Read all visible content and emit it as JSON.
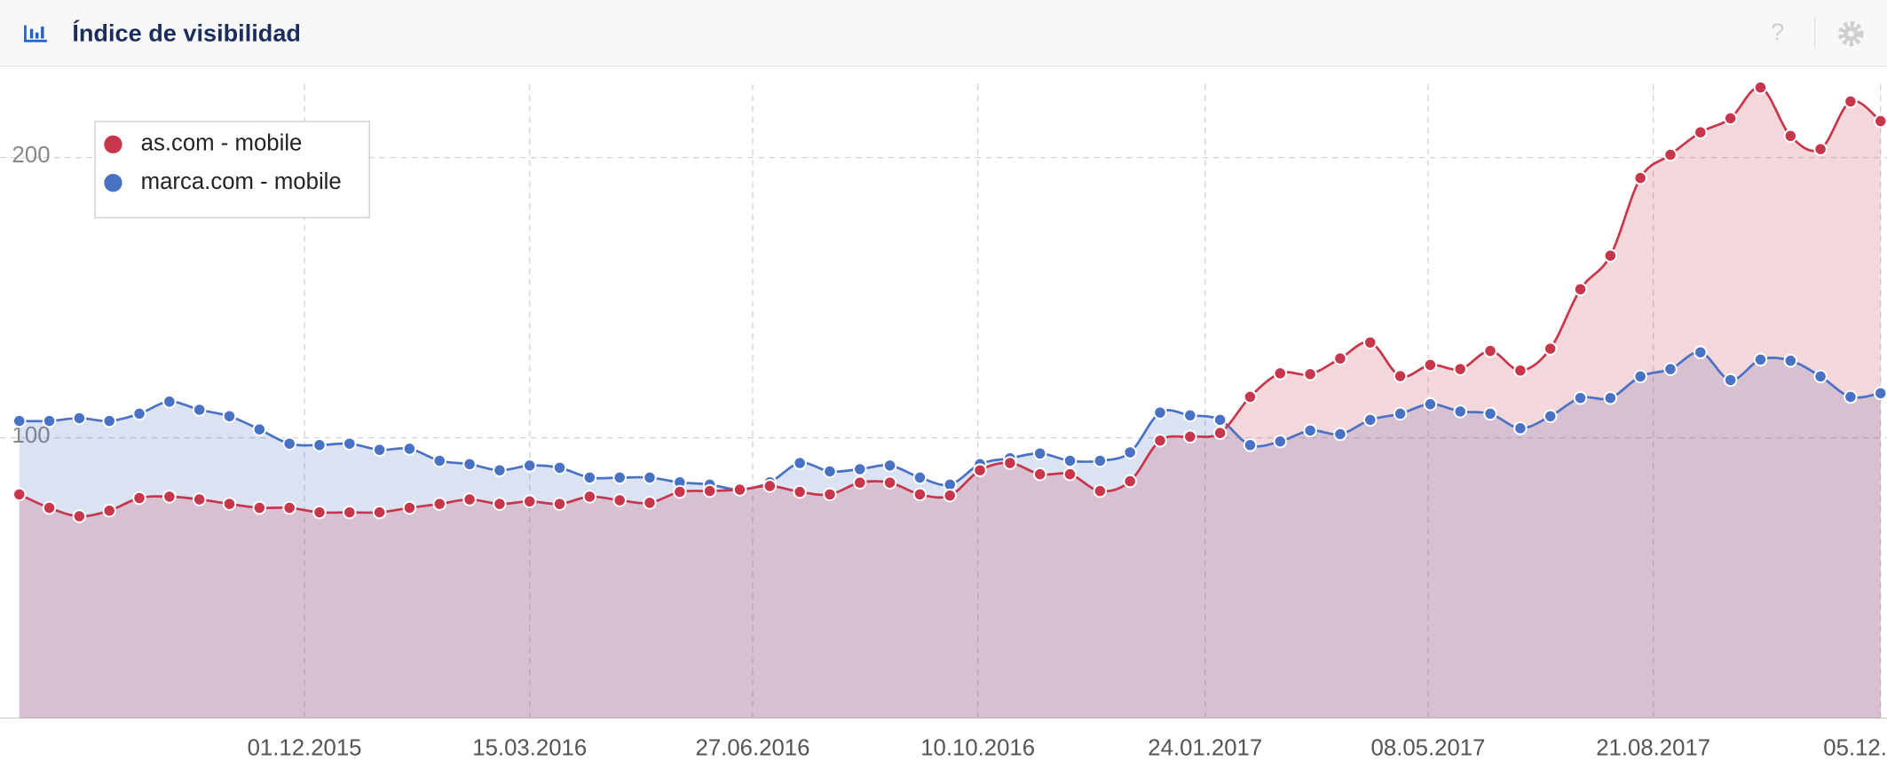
{
  "header": {
    "title": "Índice de visibilidad",
    "help": "?"
  },
  "chart_data": {
    "type": "area",
    "x": [
      "21.07.2015",
      "04.08.2015",
      "18.08.2015",
      "01.09.2015",
      "15.09.2015",
      "29.09.2015",
      "13.10.2015",
      "27.10.2015",
      "10.11.2015",
      "24.11.2015",
      "08.12.2015",
      "22.12.2015",
      "05.01.2016",
      "19.01.2016",
      "02.02.2016",
      "16.02.2016",
      "01.03.2016",
      "15.03.2016",
      "29.03.2016",
      "12.04.2016",
      "26.04.2016",
      "10.05.2016",
      "24.05.2016",
      "07.06.2016",
      "21.06.2016",
      "05.07.2016",
      "19.07.2016",
      "02.08.2016",
      "16.08.2016",
      "30.08.2016",
      "13.09.2016",
      "27.09.2016",
      "11.10.2016",
      "25.10.2016",
      "08.11.2016",
      "22.11.2016",
      "06.12.2016",
      "20.12.2016",
      "03.01.2017",
      "17.01.2017",
      "31.01.2017",
      "14.02.2017",
      "28.02.2017",
      "14.03.2017",
      "28.03.2017",
      "11.04.2017",
      "25.04.2017",
      "09.05.2017",
      "23.05.2017",
      "06.06.2017",
      "20.06.2017",
      "04.07.2017",
      "18.07.2017",
      "01.08.2017",
      "15.08.2017",
      "29.08.2017",
      "12.09.2017",
      "26.09.2017",
      "10.10.2017",
      "24.10.2017",
      "07.11.2017",
      "21.11.2017",
      "05.12.2017"
    ],
    "series": [
      {
        "name": "marca.com - mobile",
        "color": "#4a72c4",
        "values": [
          106,
          106,
          107,
          106,
          108.6,
          112.9,
          110,
          107.7,
          103,
          97.9,
          97.4,
          97.9,
          95.7,
          96.1,
          91.8,
          90.6,
          88.4,
          90.1,
          89.3,
          85.8,
          85.8,
          85.8,
          84.1,
          83.3,
          81.5,
          84.1,
          91,
          88,
          88.8,
          90.1,
          85.8,
          83.3,
          90.6,
          92.7,
          94.4,
          91.8,
          91.8,
          94.8,
          109,
          108,
          106.4,
          97.4,
          98.7,
          102.6,
          101.3,
          106.4,
          108.6,
          112,
          109.4,
          108.6,
          103.4,
          107.7,
          114.2,
          114.2,
          121.9,
          124.5,
          130.5,
          120.6,
          127.9,
          127.5,
          121.9,
          114.6,
          115.9
        ]
      },
      {
        "name": "as.com - mobile",
        "color": "#c8364c",
        "values": [
          79.8,
          75,
          72,
          74,
          78.5,
          79,
          78,
          76.4,
          75,
          75,
          73.4,
          73.4,
          73.4,
          75,
          76.4,
          78,
          76.4,
          77.3,
          76.4,
          79,
          77.7,
          76.8,
          80.7,
          81,
          81.5,
          82.8,
          80.7,
          79.8,
          84,
          84,
          79.8,
          79.4,
          88.4,
          91,
          87,
          87,
          81,
          84.5,
          99,
          100.4,
          101.7,
          114.6,
          123,
          122.7,
          128.3,
          134,
          122,
          126,
          124.5,
          131,
          124,
          131.8,
          153,
          165,
          192.7,
          201,
          209,
          214,
          225,
          207.7,
          203,
          220,
          213
        ]
      }
    ],
    "legend_order": [
      1,
      0
    ],
    "xlim": [
      "12.07.2015",
      "08.12.2017"
    ],
    "xticks": [
      "01.12.2015",
      "15.03.2016",
      "27.06.2016",
      "10.10.2016",
      "24.01.2017",
      "08.05.2017",
      "21.08.2017",
      "05.12.2017"
    ],
    "ylim": [
      0,
      232.6
    ],
    "yticks": [
      100,
      200
    ],
    "grid": true,
    "legend": "upper left"
  }
}
